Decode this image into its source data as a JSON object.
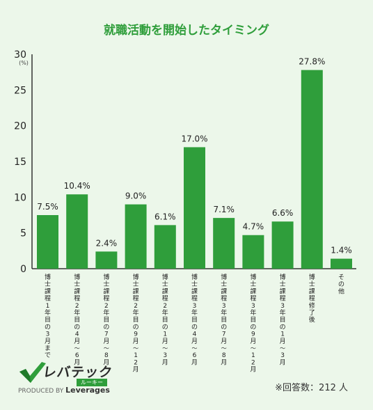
{
  "chart_data": {
    "type": "bar",
    "title": "就職活動を開始したタイミング",
    "ylabel": "",
    "y_unit": "(%)",
    "ylim": [
      0,
      30
    ],
    "yticks": [
      0,
      5,
      10,
      15,
      20,
      25,
      30
    ],
    "grid": false,
    "categories": [
      "博士課程1年目の3月まで",
      "博士課程2年目の4月〜6月",
      "博士課程2年目の7月〜8月",
      "博士課程2年目の9月〜12月",
      "博士課程2年目の1月〜3月",
      "博士課程3年目の4月〜6月",
      "博士課程3年目の7月〜8月",
      "博士課程3年目の9月〜12月",
      "博士課程3年目の1月〜3月",
      "博士課程修了後",
      "その他"
    ],
    "values": [
      7.5,
      10.4,
      2.4,
      9.0,
      6.1,
      17.0,
      7.1,
      4.7,
      6.6,
      27.8,
      1.4
    ],
    "value_labels": [
      "7.5%",
      "10.4%",
      "2.4%",
      "9.0%",
      "6.1%",
      "17.0%",
      "7.1%",
      "4.7%",
      "6.6%",
      "27.8%",
      "1.4%"
    ],
    "colors": {
      "bar": "#2f9e3b",
      "title": "#2f9e3b",
      "background": "#ecf7ea",
      "axis": "#333333"
    }
  },
  "footer": {
    "logo_text": "レバテック",
    "logo_sub": "ルーキー",
    "produced_by": "PRODUCED BY",
    "company": "Leverages",
    "respondents": "※回答数：212 人"
  }
}
